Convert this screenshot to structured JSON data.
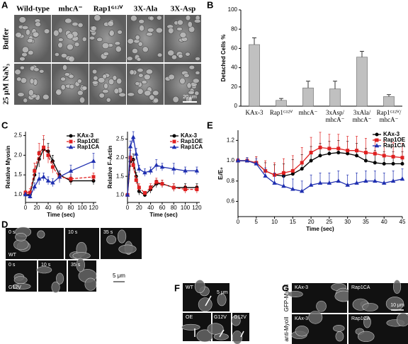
{
  "figure": {
    "panel_labels": [
      "A",
      "B",
      "C",
      "D",
      "E",
      "F",
      "G"
    ],
    "a": {
      "columns": [
        "Wild-type",
        "mhcA⁻",
        "Rap1ᴳ¹²ⱽ",
        "3X-Ala",
        "3X-Asp"
      ],
      "rows": [
        "Buffer",
        "25 μM NaN₃"
      ],
      "scale": "20 μm"
    },
    "d": {
      "top_times": [
        "0 s",
        "10 s",
        "35 s"
      ],
      "top_label": "WT",
      "bottom_times": [
        "0 s",
        "10 s",
        "35 s"
      ],
      "bottom_label": "G12V",
      "scale": "5 μm"
    },
    "f": {
      "labels": [
        "WT",
        "OE",
        "G12V",
        "G12V"
      ],
      "scale": "5 μm"
    },
    "g": {
      "columns": [
        "KAx-3",
        "Rap1CA"
      ],
      "rows": [
        "GFP-MyoII",
        "anti-MyoII"
      ],
      "scale": "10 μm"
    }
  },
  "chart_data": [
    {
      "type": "bar",
      "y_label": "Detached Cells %",
      "categories": [
        "KAx-3",
        "Rap1ᴳ¹²ⱽ",
        "mhcA⁻",
        "3xAsp/ mhcA⁻",
        "3xAla/ mhcA⁻",
        "Rap1ᴳ¹²ⱽ/ mhcA⁻"
      ],
      "values": [
        64,
        6,
        19,
        18,
        51,
        10
      ],
      "errors": [
        7,
        2,
        7,
        8,
        6,
        2
      ],
      "color": "#c0c0c0",
      "ylim": [
        0,
        100
      ],
      "yticks": [
        0,
        20,
        40,
        60,
        80,
        100
      ]
    },
    {
      "type": "line",
      "y_label": "Relative Myosin",
      "x_label": "Time (sec)",
      "legend": "upper right",
      "x": [
        0,
        8,
        16,
        24,
        32,
        40,
        48,
        60,
        80,
        120
      ],
      "series": [
        {
          "name": "KAx-3",
          "color": "#000000",
          "marker": "circle",
          "values": [
            1.0,
            1.0,
            1.5,
            1.9,
            2.15,
            2.1,
            1.85,
            1.5,
            1.35,
            1.35
          ],
          "errors": [
            0.05,
            0.05,
            0.15,
            0.2,
            0.25,
            0.2,
            0.15,
            0.1,
            0.1,
            0.1
          ]
        },
        {
          "name": "Rap1OE",
          "color": "#e02020",
          "marker": "square",
          "dashed": true,
          "values": [
            1.05,
            1.05,
            1.6,
            2.05,
            2.2,
            2.0,
            1.7,
            1.45,
            1.4,
            1.45
          ],
          "errors": [
            0.05,
            0.1,
            0.2,
            0.25,
            0.3,
            0.2,
            0.15,
            0.1,
            0.1,
            0.1
          ]
        },
        {
          "name": "Rap1CA",
          "color": "#1f2fb0",
          "marker": "triangle",
          "values": [
            1.0,
            0.95,
            1.2,
            1.4,
            1.45,
            1.35,
            1.3,
            1.45,
            1.6,
            1.85
          ],
          "errors": [
            0.05,
            0.05,
            0.1,
            0.15,
            0.1,
            0.1,
            0.1,
            0.15,
            0.15,
            0.2
          ]
        }
      ],
      "xlim": [
        0,
        125
      ],
      "xticks": [
        0,
        20,
        40,
        60,
        80,
        100,
        120
      ],
      "ylim": [
        0.8,
        2.6
      ],
      "yticks": [
        {
          "value": 1,
          "label": "1.0"
        },
        1.5,
        {
          "value": 2,
          "label": "2.0"
        },
        2.5
      ]
    },
    {
      "type": "line",
      "y_label": "Relative F-Actin",
      "x_label": "Time (sec)",
      "legend": "upper right",
      "x": [
        0,
        5,
        10,
        15,
        20,
        30,
        40,
        50,
        60,
        80,
        100,
        120
      ],
      "series": [
        {
          "name": "KAx-3",
          "color": "#000000",
          "marker": "circle",
          "values": [
            1.0,
            1.9,
            1.95,
            1.5,
            1.1,
            1.0,
            1.15,
            1.3,
            1.3,
            1.2,
            1.2,
            1.2
          ],
          "errors": [
            0.05,
            0.15,
            0.15,
            0.1,
            0.1,
            0.05,
            0.1,
            0.1,
            0.1,
            0.1,
            0.1,
            0.1
          ]
        },
        {
          "name": "Rap1OE",
          "color": "#e02020",
          "marker": "square",
          "dashed": true,
          "values": [
            1.0,
            2.0,
            1.8,
            1.4,
            1.2,
            1.05,
            1.2,
            1.35,
            1.3,
            1.2,
            1.15,
            1.15
          ],
          "errors": [
            0.05,
            0.2,
            0.15,
            0.1,
            0.1,
            0.05,
            0.1,
            0.1,
            0.1,
            0.1,
            0.1,
            0.1
          ]
        },
        {
          "name": "Rap1CA",
          "color": "#1f2fb0",
          "marker": "triangle",
          "values": [
            1.0,
            2.3,
            2.55,
            2.1,
            1.7,
            1.6,
            1.65,
            1.8,
            1.75,
            1.7,
            1.65,
            1.65
          ],
          "errors": [
            0.05,
            0.15,
            0.15,
            0.15,
            0.1,
            0.1,
            0.1,
            0.15,
            0.1,
            0.15,
            0.1,
            0.1
          ]
        }
      ],
      "xlim": [
        0,
        125
      ],
      "xticks": [
        0,
        20,
        40,
        60,
        80,
        100,
        120
      ],
      "ylim": [
        0.8,
        2.7
      ],
      "yticks": [
        {
          "value": 1,
          "label": "1.0"
        },
        1.5,
        {
          "value": 2,
          "label": "2.0"
        },
        2.5
      ]
    },
    {
      "type": "line",
      "y_label": "Eᵢ/E₀",
      "x_label": "Time (sec)",
      "legend": "upper right",
      "error_up_only": true,
      "x": [
        0,
        2.5,
        5,
        7.5,
        10,
        12.5,
        15,
        17.5,
        20,
        22.5,
        25,
        27.5,
        30,
        32.5,
        35,
        37.5,
        40,
        42.5,
        45
      ],
      "series": [
        {
          "name": "KAx-3",
          "color": "#000000",
          "marker": "circle",
          "values": [
            1.0,
            1.0,
            0.98,
            0.9,
            0.86,
            0.85,
            0.87,
            0.92,
            1.0,
            1.05,
            1.07,
            1.08,
            1.07,
            1.05,
            1.0,
            0.98,
            0.97,
            0.97,
            0.97
          ],
          "errors": [
            0.02,
            0.03,
            0.06,
            0.08,
            0.1,
            0.12,
            0.14,
            0.14,
            0.14,
            0.12,
            0.12,
            0.12,
            0.12,
            0.12,
            0.12,
            0.12,
            0.12,
            0.12,
            0.12
          ]
        },
        {
          "name": "Rap1OE",
          "color": "#e02020",
          "marker": "square",
          "values": [
            1.0,
            1.0,
            0.98,
            0.9,
            0.86,
            0.88,
            0.9,
            0.98,
            1.08,
            1.13,
            1.12,
            1.12,
            1.1,
            1.1,
            1.08,
            1.07,
            1.05,
            1.04,
            1.03
          ],
          "errors": [
            0.02,
            0.03,
            0.06,
            0.1,
            0.12,
            0.14,
            0.15,
            0.15,
            0.15,
            0.15,
            0.14,
            0.14,
            0.14,
            0.14,
            0.14,
            0.14,
            0.14,
            0.14,
            0.14
          ]
        },
        {
          "name": "Rap1CA",
          "color": "#1f2fb0",
          "marker": "triangle",
          "values": [
            1.0,
            1.0,
            0.97,
            0.85,
            0.78,
            0.75,
            0.72,
            0.7,
            0.76,
            0.78,
            0.78,
            0.8,
            0.76,
            0.78,
            0.8,
            0.8,
            0.78,
            0.8,
            0.82
          ],
          "errors": [
            0.02,
            0.03,
            0.05,
            0.08,
            0.1,
            0.1,
            0.1,
            0.1,
            0.1,
            0.1,
            0.1,
            0.1,
            0.1,
            0.1,
            0.1,
            0.1,
            0.1,
            0.1,
            0.1
          ]
        }
      ],
      "xlim": [
        0,
        45
      ],
      "xticks": [
        0,
        5,
        10,
        15,
        20,
        25,
        30,
        35,
        40,
        45
      ],
      "ylim": [
        0.45,
        1.3
      ],
      "yticks": [
        0.6,
        0.8,
        {
          "value": 1,
          "label": "1.0"
        },
        1.2
      ]
    }
  ]
}
